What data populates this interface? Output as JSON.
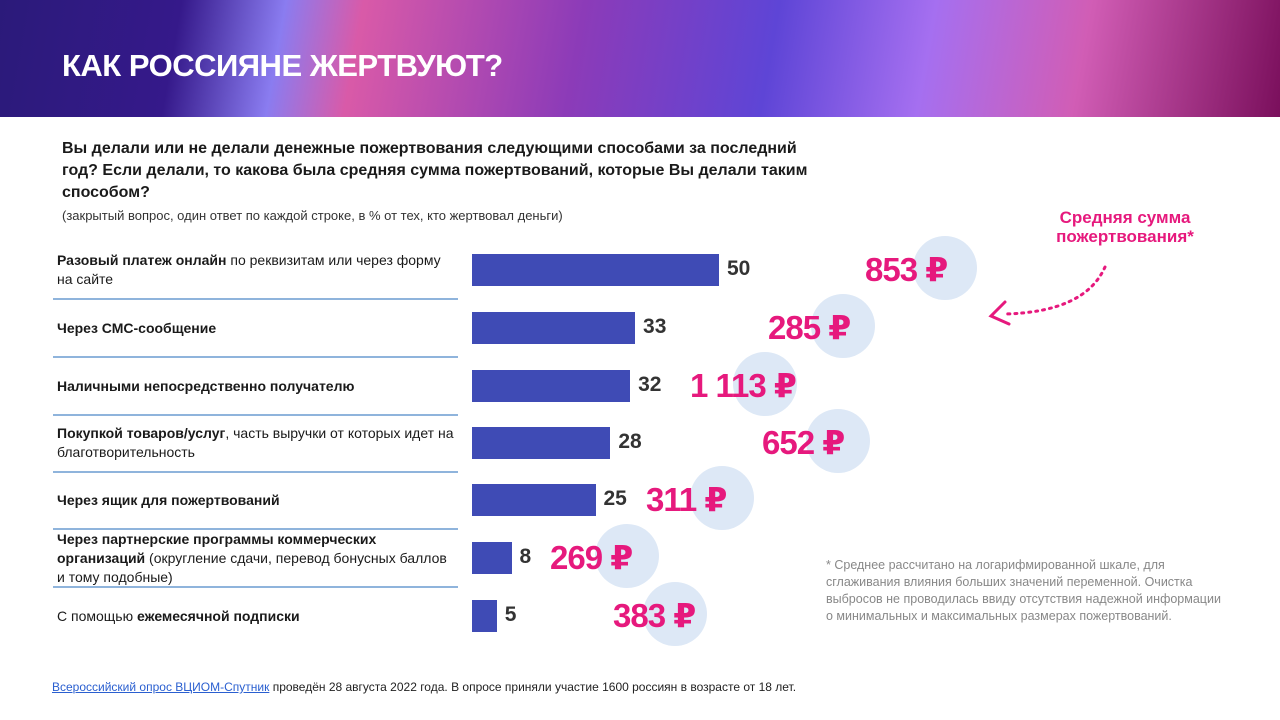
{
  "header": {
    "title": "КАК РОССИЯНЕ ЖЕРТВУЮТ?"
  },
  "question": "Вы делали или не делали денежные пожертвования следующими способами за последний год? Если делали, то какова была средняя сумма пожертвований, которые Вы делали таким способом?",
  "note": "(закрытый вопрос, один ответ по каждой строке, в % от тех, кто жертвовал деньги)",
  "avg_label": "Средняя сумма пожертвования*",
  "footnote": "* Среднее рассчитано на логарифмированной шкале, для сглаживания влияния больших значений переменной. Очистка выбросов не проводилась ввиду отсутствия надежной информации о минимальных и максимальных размерах пожертвований.",
  "source": {
    "link": "Всероссийский опрос ВЦИОМ-Спутник",
    "text": " проведён 28 августа 2022 года. В опросе приняли участие 1600 россиян в возрасте от 18 лет."
  },
  "colors": {
    "bar": "#3f4bb5",
    "amount": "#e6197d",
    "circle": "#dde8f6"
  },
  "chart_data": {
    "type": "bar",
    "orientation": "horizontal",
    "unit": "%",
    "categories": [
      {
        "bold": "Разовый платеж онлайн",
        "rest": " по реквизитам или через форму на сайте"
      },
      {
        "bold": "Через СМС-сообщение",
        "rest": ""
      },
      {
        "bold": "Наличными непосредственно получателю",
        "rest": ""
      },
      {
        "bold": "Покупкой товаров/услуг",
        "rest": ", часть выручки от которых идет на благотворительность"
      },
      {
        "bold": "Через ящик для пожертвований",
        "rest": ""
      },
      {
        "bold": "Через партнерские программы коммерческих организаций",
        "rest": " (округление сдачи, перевод бонусных баллов и тому подобные)"
      },
      {
        "pre": "С помощью ",
        "bold": "ежемесячной подписки",
        "rest": ""
      }
    ],
    "values": [
      50,
      33,
      32,
      28,
      25,
      8,
      5
    ],
    "value_labels": [
      "50",
      "33",
      "32",
      "28",
      "25",
      "8",
      "5"
    ],
    "avg_amounts": [
      "853 ₽",
      "285 ₽",
      "1 113 ₽",
      "652 ₽",
      "311 ₽",
      "269 ₽",
      "383 ₽"
    ]
  }
}
